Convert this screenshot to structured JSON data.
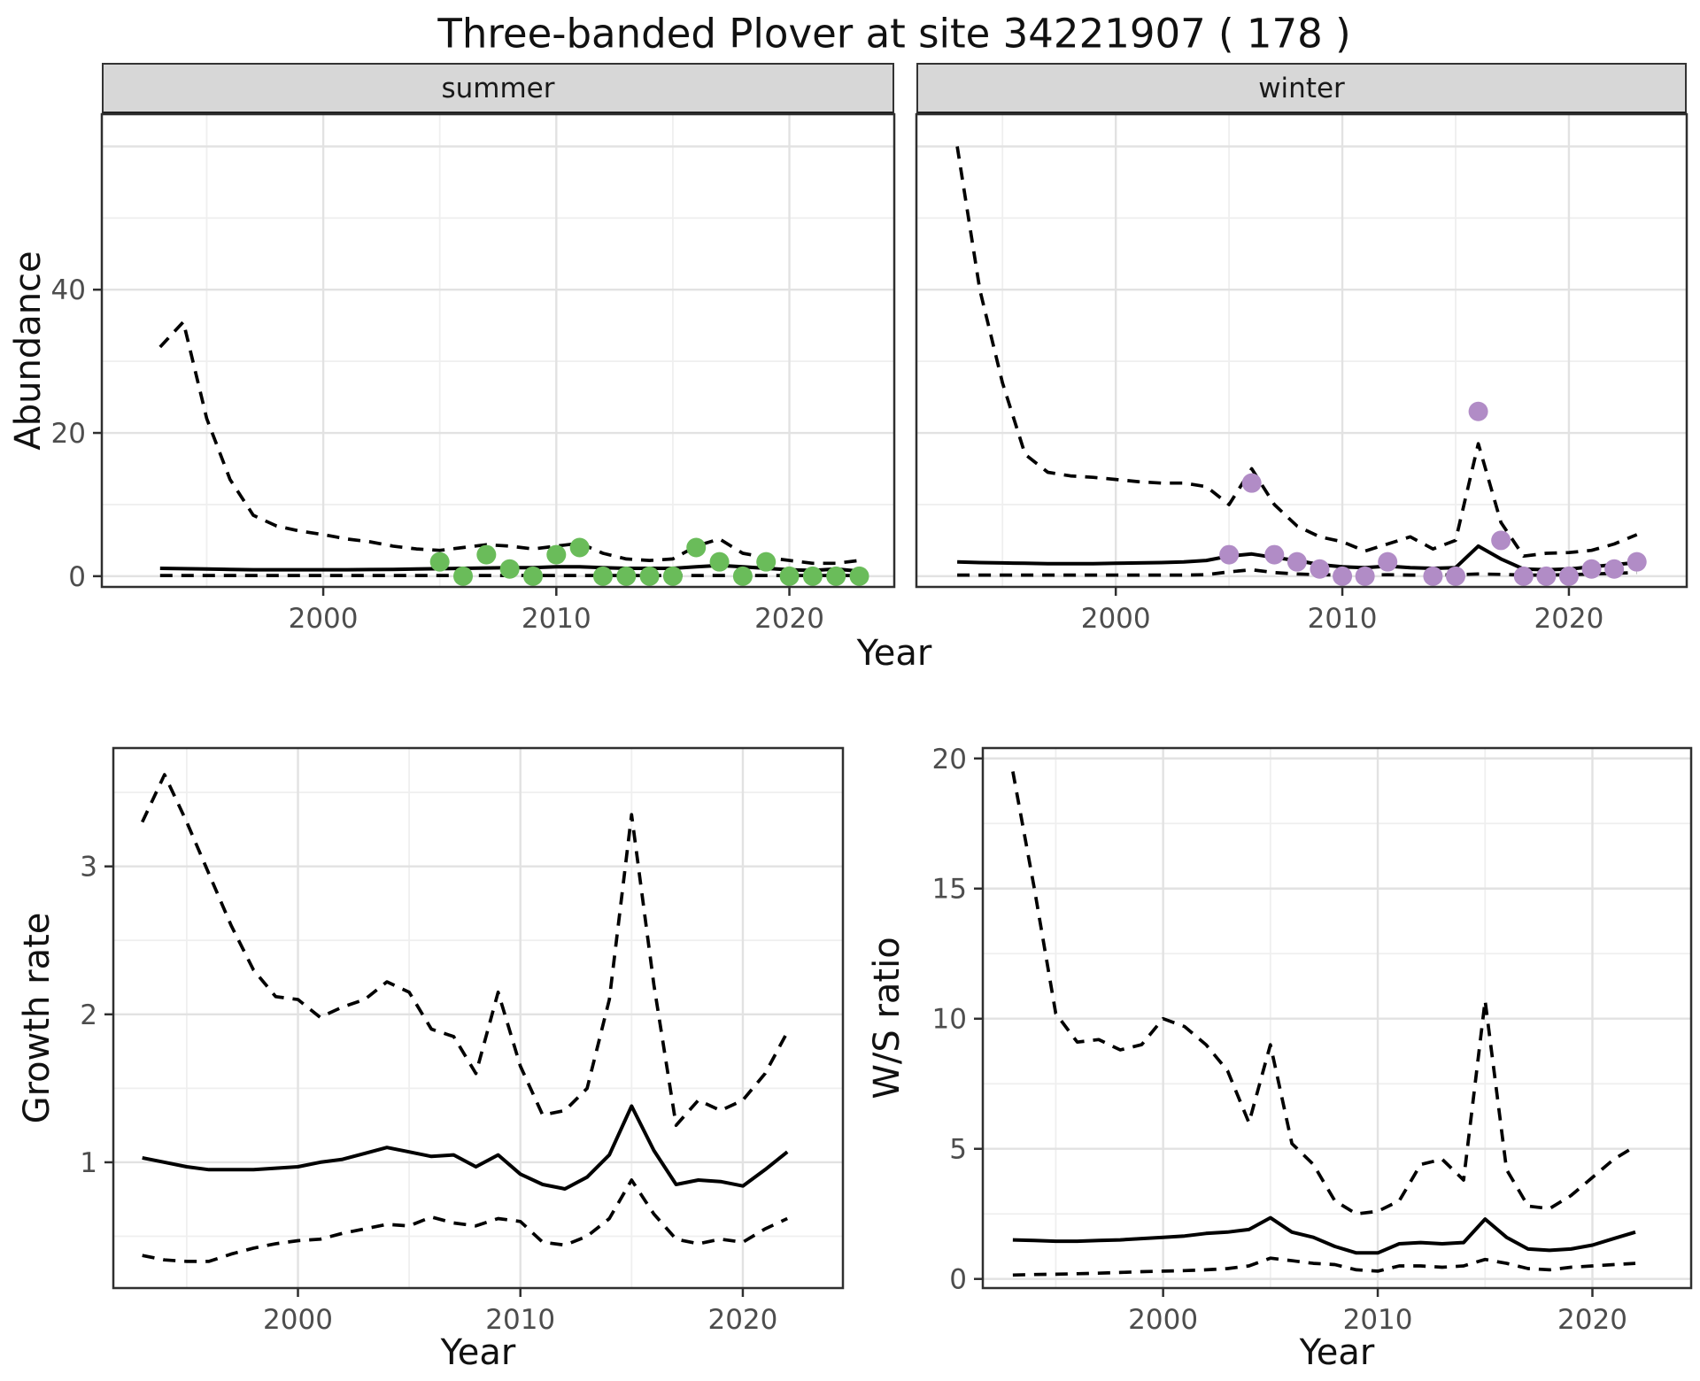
{
  "title": "Three-banded Plover at site 34221907 ( 178 )",
  "style": {
    "major_grid": "#e2e2e2",
    "minor_grid": "#efefef",
    "line_color": "#000000",
    "border_color": "#2f2f2f",
    "tick_color": "#4d4d4d",
    "strip_bg": "#d7d7d7",
    "summer_point_color": "#6abc5a",
    "winter_point_color": "#b18cc6"
  },
  "chart_data": [
    {
      "type": "line",
      "facet": "summer",
      "xlabel": "Year",
      "ylabel": "Abundance",
      "xlim": [
        1990.5,
        2024.5
      ],
      "ylim": [
        -1.5,
        64.5
      ],
      "x_ticks": [
        2000,
        2010,
        2020
      ],
      "y_ticks": [
        0,
        20,
        40
      ],
      "grid_x_major": [
        2000,
        2010,
        2020
      ],
      "grid_x_minor": [
        1995,
        2005,
        2015
      ],
      "grid_y_major": [
        0,
        20,
        40,
        60
      ],
      "grid_y_minor": [
        10,
        30,
        50
      ],
      "show_y_tick_labels": true,
      "years": [
        1993,
        1994,
        1995,
        1996,
        1997,
        1998,
        1999,
        2000,
        2001,
        2002,
        2003,
        2004,
        2005,
        2006,
        2007,
        2008,
        2009,
        2010,
        2011,
        2012,
        2013,
        2014,
        2015,
        2016,
        2017,
        2018,
        2019,
        2020,
        2021,
        2022,
        2023
      ],
      "series": [
        {
          "name": "upper_95ci",
          "style": "dashed",
          "values": [
            32,
            35.5,
            22,
            13.5,
            8.5,
            7,
            6.3,
            5.8,
            5.2,
            4.8,
            4.2,
            3.8,
            3.6,
            4,
            4.4,
            4.2,
            3.8,
            4.2,
            4.6,
            3.2,
            2.4,
            2.2,
            2.4,
            4.2,
            5.2,
            3.2,
            2.6,
            2.2,
            1.8,
            1.8,
            2.2
          ]
        },
        {
          "name": "fit",
          "style": "solid",
          "values": [
            1.1,
            1.05,
            1,
            0.95,
            0.9,
            0.9,
            0.9,
            0.9,
            0.9,
            0.92,
            0.95,
            1,
            1.05,
            1.1,
            1.15,
            1.2,
            1.2,
            1.3,
            1.3,
            1.2,
            1.1,
            1.1,
            1.1,
            1.3,
            1.5,
            1.3,
            1.1,
            0.9,
            0.8,
            1,
            0.7
          ]
        },
        {
          "name": "lower_95ci",
          "style": "dashed",
          "values": [
            0.1,
            0.1,
            0.1,
            0.1,
            0.1,
            0.1,
            0.1,
            0.1,
            0.1,
            0.1,
            0.1,
            0.1,
            0.1,
            0.1,
            0.1,
            0.1,
            0.1,
            0.1,
            0.1,
            0.1,
            0.1,
            0.1,
            0.1,
            0.1,
            0.1,
            0.1,
            0.1,
            0.1,
            0.1,
            0.1,
            0.1
          ]
        },
        {
          "name": "observed",
          "style": "points",
          "color": "#6abc5a",
          "x": [
            2005,
            2006,
            2007,
            2008,
            2009,
            2010,
            2011,
            2012,
            2013,
            2014,
            2015,
            2016,
            2017,
            2018,
            2019,
            2020,
            2021,
            2022,
            2023
          ],
          "values": [
            2,
            0,
            3,
            1,
            0,
            3,
            4,
            0,
            0,
            0,
            0,
            4,
            2,
            0,
            2,
            0,
            0,
            0,
            0
          ]
        }
      ]
    },
    {
      "type": "line",
      "facet": "winter",
      "xlabel": "Year",
      "ylabel": "Abundance",
      "xlim": [
        1991.2,
        2025.2
      ],
      "ylim": [
        -1.5,
        64.5
      ],
      "x_ticks": [
        2000,
        2010,
        2020
      ],
      "y_ticks": [
        0,
        20,
        40
      ],
      "grid_x_major": [
        2000,
        2010,
        2020
      ],
      "grid_x_minor": [
        1995,
        2005,
        2015
      ],
      "grid_y_major": [
        0,
        20,
        40,
        60
      ],
      "grid_y_minor": [
        10,
        30,
        50
      ],
      "show_y_tick_labels": false,
      "years": [
        1993,
        1994,
        1995,
        1996,
        1997,
        1998,
        1999,
        2000,
        2001,
        2002,
        2003,
        2004,
        2005,
        2006,
        2007,
        2008,
        2009,
        2010,
        2011,
        2012,
        2013,
        2014,
        2015,
        2016,
        2017,
        2018,
        2019,
        2020,
        2021,
        2022,
        2023
      ],
      "series": [
        {
          "name": "upper_95ci",
          "style": "dashed",
          "values": [
            60,
            40,
            27,
            17,
            14.5,
            14,
            13.8,
            13.5,
            13.2,
            13,
            13,
            12.5,
            10,
            15,
            10,
            7,
            5.5,
            4.8,
            3.5,
            4.5,
            5.5,
            3.8,
            5,
            18.5,
            7.5,
            2.8,
            3.2,
            3.3,
            3.6,
            4.5,
            5.8
          ]
        },
        {
          "name": "fit",
          "style": "solid",
          "values": [
            2,
            1.9,
            1.85,
            1.8,
            1.75,
            1.75,
            1.75,
            1.8,
            1.85,
            1.9,
            2,
            2.2,
            2.8,
            3.1,
            2.6,
            2.2,
            1.6,
            1.3,
            1.2,
            1.4,
            1.2,
            1.1,
            1.2,
            4.2,
            2.4,
            1,
            0.9,
            1,
            1.3,
            1.6,
            1.9
          ]
        },
        {
          "name": "lower_95ci",
          "style": "dashed",
          "values": [
            0.15,
            0.15,
            0.15,
            0.15,
            0.15,
            0.15,
            0.15,
            0.15,
            0.15,
            0.15,
            0.15,
            0.2,
            0.6,
            0.9,
            0.5,
            0.3,
            0.2,
            0.15,
            0.15,
            0.2,
            0.15,
            0.15,
            0.2,
            0.3,
            0.25,
            0.15,
            0.15,
            0.2,
            0.3,
            0.4,
            0.5
          ]
        },
        {
          "name": "observed",
          "style": "points",
          "color": "#b18cc6",
          "x": [
            2005,
            2006,
            2007,
            2008,
            2009,
            2010,
            2011,
            2012,
            2014,
            2015,
            2016,
            2017,
            2018,
            2019,
            2020,
            2021,
            2022,
            2023
          ],
          "values": [
            3,
            13,
            3,
            2,
            1,
            0,
            0,
            2,
            0,
            0,
            23,
            5,
            0,
            0,
            0,
            1,
            1,
            2
          ]
        }
      ]
    },
    {
      "type": "line",
      "facet": "",
      "xlabel": "Year",
      "ylabel": "Growth rate",
      "xlim": [
        1991.7,
        2024.5
      ],
      "ylim": [
        0.15,
        3.8
      ],
      "x_ticks": [
        2000,
        2010,
        2020
      ],
      "y_ticks": [
        1,
        2,
        3
      ],
      "grid_x_major": [
        2000,
        2010,
        2020
      ],
      "grid_x_minor": [
        1995,
        2005,
        2015
      ],
      "grid_y_major": [
        1,
        2,
        3
      ],
      "grid_y_minor": [
        0.5,
        1.5,
        2.5,
        3.5
      ],
      "show_y_tick_labels": true,
      "years": [
        1993,
        1994,
        1995,
        1996,
        1997,
        1998,
        1999,
        2000,
        2001,
        2002,
        2003,
        2004,
        2005,
        2006,
        2007,
        2008,
        2009,
        2010,
        2011,
        2012,
        2013,
        2014,
        2015,
        2016,
        2017,
        2018,
        2019,
        2020,
        2021,
        2022
      ],
      "series": [
        {
          "name": "upper_95ci",
          "style": "dashed",
          "values": [
            3.3,
            3.62,
            3.3,
            2.95,
            2.6,
            2.3,
            2.12,
            2.1,
            1.98,
            2.05,
            2.1,
            2.22,
            2.15,
            1.9,
            1.85,
            1.6,
            2.15,
            1.65,
            1.32,
            1.35,
            1.5,
            2.1,
            3.35,
            2.2,
            1.25,
            1.42,
            1.35,
            1.42,
            1.6,
            1.88
          ]
        },
        {
          "name": "fit",
          "style": "solid",
          "values": [
            1.03,
            1,
            0.97,
            0.95,
            0.95,
            0.95,
            0.96,
            0.97,
            1,
            1.02,
            1.06,
            1.1,
            1.07,
            1.04,
            1.05,
            0.97,
            1.05,
            0.92,
            0.85,
            0.82,
            0.9,
            1.05,
            1.38,
            1.08,
            0.85,
            0.88,
            0.87,
            0.84,
            0.95,
            1.07
          ]
        },
        {
          "name": "lower_95ci",
          "style": "dashed",
          "values": [
            0.37,
            0.34,
            0.33,
            0.33,
            0.38,
            0.42,
            0.45,
            0.47,
            0.48,
            0.52,
            0.55,
            0.58,
            0.57,
            0.63,
            0.59,
            0.57,
            0.62,
            0.6,
            0.46,
            0.44,
            0.5,
            0.62,
            0.88,
            0.65,
            0.48,
            0.45,
            0.48,
            0.46,
            0.55,
            0.62
          ]
        }
      ]
    },
    {
      "type": "line",
      "facet": "",
      "xlabel": "Year",
      "ylabel": "W/S ratio",
      "xlim": [
        1991.6,
        2024.6
      ],
      "ylim": [
        -0.35,
        20.4
      ],
      "x_ticks": [
        2000,
        2010,
        2020
      ],
      "y_ticks": [
        0,
        5,
        10,
        15,
        20
      ],
      "grid_x_major": [
        2000,
        2010,
        2020
      ],
      "grid_x_minor": [
        1995,
        2005,
        2015
      ],
      "grid_y_major": [
        0,
        5,
        10,
        15,
        20
      ],
      "grid_y_minor": [
        2.5,
        7.5,
        12.5,
        17.5
      ],
      "show_y_tick_labels": true,
      "years": [
        1993,
        1994,
        1995,
        1996,
        1997,
        1998,
        1999,
        2000,
        2001,
        2002,
        2003,
        2004,
        2005,
        2006,
        2007,
        2008,
        2009,
        2010,
        2011,
        2012,
        2013,
        2014,
        2015,
        2016,
        2017,
        2018,
        2019,
        2020,
        2021,
        2022
      ],
      "series": [
        {
          "name": "upper_95ci",
          "style": "dashed",
          "values": [
            19.5,
            15,
            10.2,
            9.1,
            9.2,
            8.8,
            9,
            10,
            9.7,
            9,
            8,
            6,
            9,
            5.2,
            4.4,
            3,
            2.5,
            2.6,
            3,
            4.4,
            4.6,
            3.8,
            10.7,
            4.2,
            2.8,
            2.7,
            3.2,
            3.9,
            4.6,
            5.1
          ]
        },
        {
          "name": "fit",
          "style": "solid",
          "values": [
            1.5,
            1.48,
            1.45,
            1.45,
            1.48,
            1.5,
            1.55,
            1.6,
            1.65,
            1.75,
            1.8,
            1.9,
            2.35,
            1.8,
            1.6,
            1.25,
            1,
            1,
            1.35,
            1.4,
            1.35,
            1.4,
            2.3,
            1.6,
            1.15,
            1.1,
            1.15,
            1.3,
            1.55,
            1.8
          ]
        },
        {
          "name": "lower_95ci",
          "style": "dashed",
          "values": [
            0.15,
            0.17,
            0.18,
            0.2,
            0.22,
            0.25,
            0.28,
            0.3,
            0.32,
            0.35,
            0.4,
            0.5,
            0.8,
            0.7,
            0.6,
            0.55,
            0.35,
            0.3,
            0.5,
            0.5,
            0.45,
            0.5,
            0.75,
            0.6,
            0.4,
            0.35,
            0.45,
            0.5,
            0.55,
            0.6
          ]
        }
      ]
    }
  ]
}
